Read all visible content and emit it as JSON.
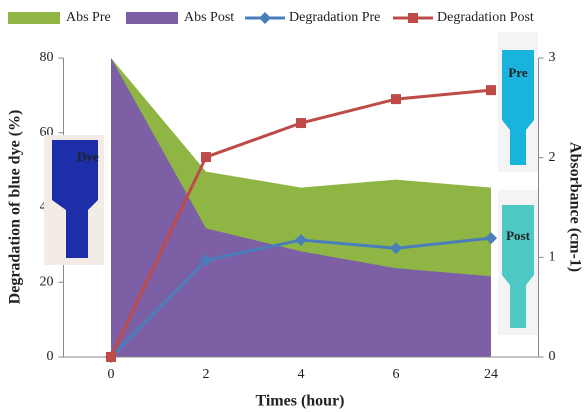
{
  "chart_data": {
    "type": "area-line",
    "categories": [
      "0",
      "2",
      "4",
      "6",
      "24"
    ],
    "x_label": "Times (hour)",
    "y_label": "Degradation of blue dye (%)",
    "y2_label": "Absorbance (cm-1)",
    "ylim": [
      0,
      80
    ],
    "yticks": [
      0,
      20,
      40,
      60,
      80
    ],
    "y2lim": [
      0,
      3
    ],
    "y2ticks": [
      0,
      1,
      2,
      3
    ],
    "series": [
      {
        "name": "Abs Pre",
        "kind": "area",
        "axis": "y2",
        "color": "#8fb544",
        "values": [
          3,
          1.86,
          1.7,
          1.78,
          1.7
        ]
      },
      {
        "name": "Abs Post",
        "kind": "area",
        "axis": "y2",
        "color": "#7d5fa5",
        "values": [
          3,
          1.29,
          1.06,
          0.89,
          0.81
        ]
      },
      {
        "name": "Degradation Pre",
        "kind": "line",
        "marker": "diamond",
        "color": "#4a7ebb",
        "values": [
          0,
          25.9,
          31.3,
          29.1,
          31.8
        ]
      },
      {
        "name": "Degradation Post",
        "kind": "line",
        "marker": "square",
        "color": "#be4b48",
        "values": [
          0,
          53.5,
          62.6,
          69,
          71.4
        ]
      }
    ],
    "annotations": [
      "Dye",
      "Pre",
      "Post"
    ]
  }
}
